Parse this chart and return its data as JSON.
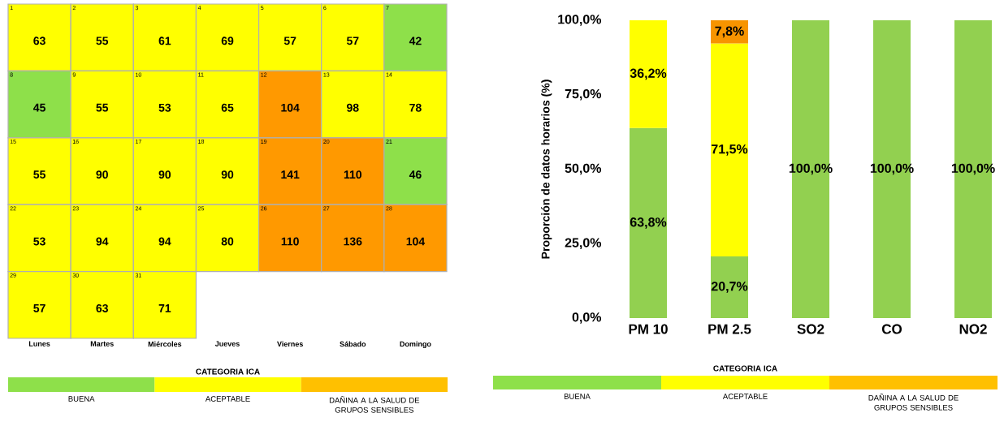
{
  "chart_data": [
    {
      "type": "heatmap",
      "categories": [
        "Lunes",
        "Martes",
        "Miércoles",
        "Jueves",
        "Viernes",
        "Sábado",
        "Domingo"
      ],
      "y_categories": [
        null,
        null,
        null,
        null,
        null
      ],
      "cells": [
        [
          63,
          55,
          61,
          69,
          57,
          57,
          42
        ],
        [
          45,
          55,
          53,
          65,
          104,
          98,
          78
        ],
        [
          55,
          90,
          90,
          90,
          141,
          110,
          46
        ],
        [
          53,
          94,
          94,
          80,
          110,
          136,
          104
        ],
        [
          57,
          63,
          71,
          null,
          null,
          null,
          null
        ]
      ],
      "colors": [
        [
          "#ffff00",
          "#ffff00",
          "#ffff00",
          "#ffff00",
          "#ffff00",
          "#ffff00",
          "#8ee04a"
        ],
        [
          "#8ee04a",
          "#ffff00",
          "#ffff00",
          "#ffff00",
          "#ff9900",
          "#ffff00",
          "#ffff00"
        ],
        [
          "#ffff00",
          "#ffff00",
          "#ffff00",
          "#ffff00",
          "#ff9900",
          "#ff9900",
          "#8ee04a"
        ],
        [
          "#ffff00",
          "#ffff00",
          "#ffff00",
          "#ffff00",
          "#ff9900",
          "#ff9900",
          "#ff9900"
        ],
        [
          "#ffff00",
          "#ffff00",
          "#ffff00",
          null,
          null,
          null,
          null
        ]
      ],
      "annotations": [
        "1",
        "2",
        "3",
        "4",
        "5",
        "6",
        "7",
        "8",
        "9",
        "10",
        "11",
        "12",
        "13",
        "14",
        "15",
        "16",
        "17",
        "18",
        "19",
        "20",
        "21",
        "22",
        "23",
        "24",
        "25",
        "26",
        "27",
        "28",
        "29",
        "30",
        "31"
      ],
      "data_labels": true
    },
    {
      "type": "bar",
      "stacked": true,
      "categories": [
        "PM 10",
        "PM 2.5",
        "SO2",
        "CO",
        "NO2"
      ],
      "ylabel": "Proporción de datos horarios (%)",
      "ylim": [
        0,
        100
      ],
      "yticks": [
        {
          "value": 0,
          "label": "0,0%"
        },
        {
          "value": 25,
          "label": "25,0%"
        },
        {
          "value": 50,
          "label": "50,0%"
        },
        {
          "value": 75,
          "label": "75,0%"
        },
        {
          "value": 100,
          "label": "100,0%"
        }
      ],
      "series": [
        {
          "color": "#92d050",
          "values": [
            63.8,
            20.7,
            100,
            100,
            100
          ],
          "value_labels": [
            "63,8%",
            "20,7%",
            "100,0%",
            "100,0%",
            "100,0%"
          ]
        },
        {
          "color": "#ffff00",
          "values": [
            36.2,
            71.5,
            null,
            null,
            null
          ],
          "value_labels": [
            "36,2%",
            "71,5%",
            null,
            null,
            null
          ]
        },
        {
          "color": "#f79400",
          "values": [
            null,
            7.8,
            null,
            null,
            null
          ],
          "value_labels": [
            null,
            "7,8%",
            null,
            null,
            null
          ]
        }
      ]
    },
    {
      "type": "other",
      "title": "CATEGORIA ICA",
      "categories": [
        "BUENA",
        "ACEPTABLE",
        "DAÑINA A LA SALUD DE GRUPOS SENSIBLES"
      ],
      "colors": [
        "#8ee04a",
        "#ffff00",
        "#ffc000"
      ]
    },
    {
      "type": "other",
      "title": "CATEGORIA ICA",
      "categories": [
        "BUENA",
        "ACEPTABLE",
        "DAÑINA A LA SALUD DE GRUPOS SENSIBLES"
      ],
      "colors": [
        "#8ee04a",
        "#ffff00",
        "#ffc000"
      ]
    }
  ]
}
